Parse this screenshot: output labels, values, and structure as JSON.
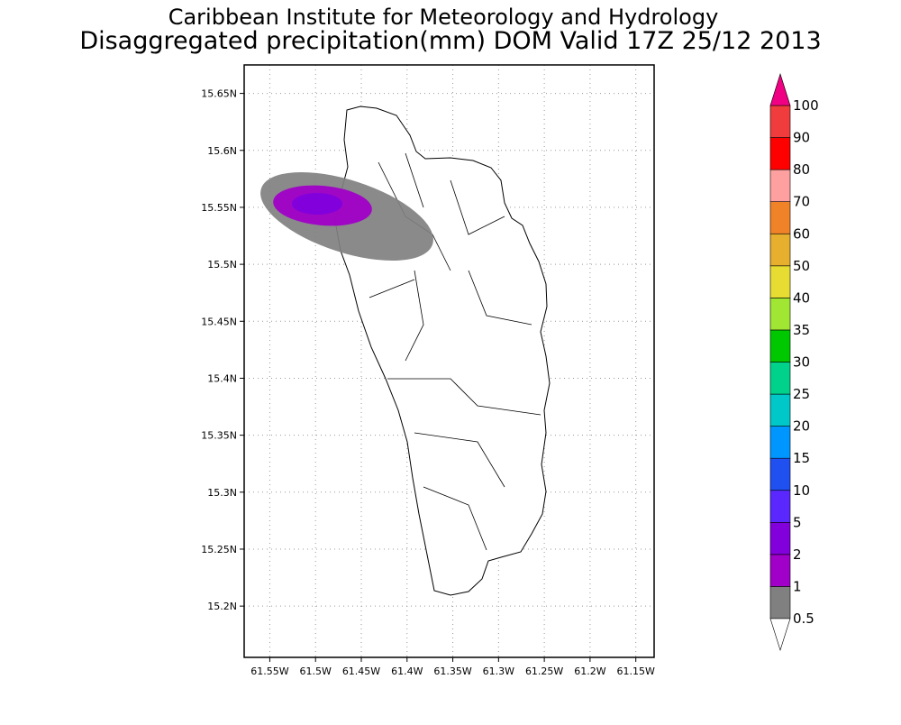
{
  "title": "Caribbean Institute for Meteorology and Hydrology",
  "subtitle": "Disaggregated precipitation(mm) DOM Valid 17Z 25/12 2013",
  "map": {
    "xlim": [
      -61.578,
      -61.13
    ],
    "ylim": [
      15.155,
      15.675
    ],
    "grid": true,
    "xticks": [
      {
        "value": -61.55,
        "label": "61.55W"
      },
      {
        "value": -61.5,
        "label": "61.5W"
      },
      {
        "value": -61.45,
        "label": "61.45W"
      },
      {
        "value": -61.4,
        "label": "61.4W"
      },
      {
        "value": -61.35,
        "label": "61.35W"
      },
      {
        "value": -61.3,
        "label": "61.3W"
      },
      {
        "value": -61.25,
        "label": "61.25W"
      },
      {
        "value": -61.2,
        "label": "61.2W"
      },
      {
        "value": -61.15,
        "label": "61.15W"
      }
    ],
    "yticks": [
      {
        "value": 15.2,
        "label": "15.2N"
      },
      {
        "value": 15.25,
        "label": "15.25N"
      },
      {
        "value": 15.3,
        "label": "15.3N"
      },
      {
        "value": 15.35,
        "label": "15.35N"
      },
      {
        "value": 15.4,
        "label": "15.4N"
      },
      {
        "value": 15.45,
        "label": "15.45N"
      },
      {
        "value": 15.5,
        "label": "15.5N"
      },
      {
        "value": 15.55,
        "label": "15.55N"
      },
      {
        "value": 15.6,
        "label": "15.6N"
      },
      {
        "value": 15.65,
        "label": "15.65N"
      }
    ]
  },
  "colorbar": {
    "levels": [
      0.5,
      1,
      2,
      5,
      10,
      15,
      20,
      25,
      30,
      35,
      40,
      50,
      60,
      70,
      80,
      90,
      100
    ],
    "colors": [
      "#808080",
      "#a000c8",
      "#8200dc",
      "#5a28ff",
      "#2050f0",
      "#0096ff",
      "#00c8c8",
      "#00d28c",
      "#00c800",
      "#a0e632",
      "#e6dc32",
      "#e6af2d",
      "#f08228",
      "#ffa0a0",
      "#ff0000",
      "#f03c3c"
    ],
    "under_color": "#ffffff",
    "over_color": "#f00082"
  }
}
